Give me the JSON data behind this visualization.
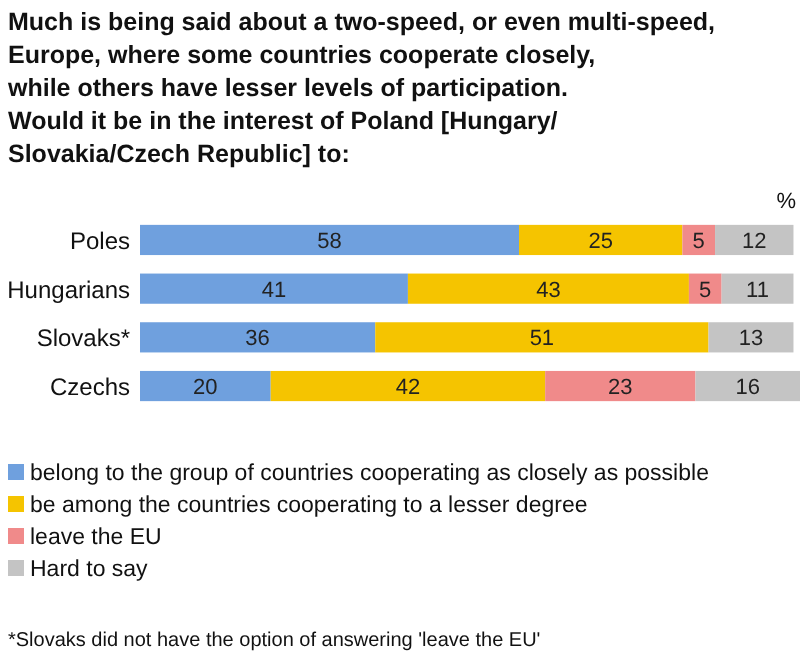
{
  "chart_data": {
    "type": "bar",
    "orientation": "horizontal",
    "stacked": true,
    "data_labels": true,
    "legend": "bottom",
    "title": "Much is being said about a two-speed, or even multi-speed,\nEurope, where some countries cooperate closely,\nwhile others have lesser levels of participation.\nWould it be in the interest of Poland [Hungary/\nSlovakia/Czech Republic] to:",
    "categories": [
      "Poles",
      "Hungarians",
      "Slovaks*",
      "Czechs"
    ],
    "series": [
      {
        "name": "belong to the group of countries cooperating as closely as possible",
        "color": "#6fa0de",
        "values": [
          58,
          41,
          36,
          20
        ]
      },
      {
        "name": "be among the countries cooperating to a lesser degree",
        "color": "#f5c400",
        "values": [
          25,
          43,
          51,
          42
        ]
      },
      {
        "name": "leave the EU",
        "color": "#f08a8a",
        "values": [
          5,
          5,
          null,
          23
        ]
      },
      {
        "name": "Hard to say",
        "color": "#c4c4c4",
        "values": [
          12,
          11,
          13,
          16
        ]
      }
    ],
    "annotations": [
      "%",
      "*Slovaks did not have the option of answering 'leave the EU'"
    ]
  }
}
